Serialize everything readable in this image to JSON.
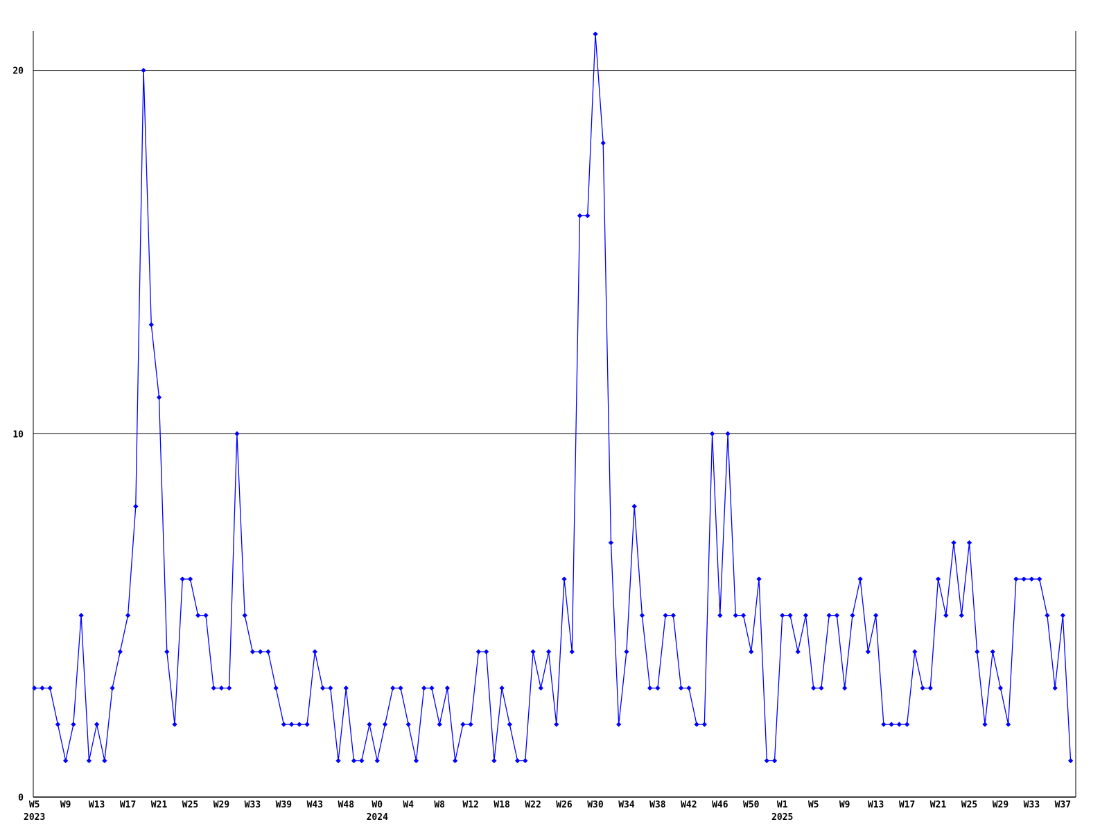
{
  "chart_data": {
    "type": "line",
    "title": "",
    "xlabel": "",
    "ylabel": "",
    "legend": "none",
    "grid": "horizontal-only",
    "line_color": "#0000ff",
    "axis_color": "#000000",
    "background_color": "#ffffff",
    "marker": "diamond",
    "y_ticks": [
      0,
      10,
      20
    ],
    "ylim": [
      0,
      21.5
    ],
    "tick_every": 4,
    "x_tick_labels": [
      "W5",
      "W9",
      "W13",
      "W17",
      "W21",
      "W25",
      "W29",
      "W33",
      "W39",
      "W43",
      "W48",
      "W0",
      "W4",
      "W8",
      "W12",
      "W18",
      "W22",
      "W26",
      "W30",
      "W34",
      "W38",
      "W42",
      "W46",
      "W50",
      "W1",
      "W5",
      "W9",
      "W13",
      "W17",
      "W21",
      "W25",
      "W29",
      "W33",
      "W37"
    ],
    "year_labels": [
      {
        "tick_index": 0,
        "text": "2023"
      },
      {
        "tick_index": 11,
        "text": "2024"
      },
      {
        "tick_index": 24,
        "text": "2025"
      }
    ],
    "values": [
      3,
      3,
      3,
      2,
      1,
      2,
      5,
      1,
      2,
      1,
      3,
      4,
      5,
      8,
      20,
      13,
      11,
      4,
      2,
      6,
      6,
      5,
      5,
      3,
      3,
      3,
      10,
      5,
      4,
      4,
      4,
      3,
      2,
      2,
      2,
      2,
      4,
      3,
      3,
      1,
      3,
      1,
      1,
      2,
      1,
      2,
      3,
      3,
      2,
      1,
      3,
      3,
      2,
      3,
      1,
      2,
      2,
      4,
      4,
      1,
      3,
      2,
      1,
      1,
      4,
      3,
      4,
      2,
      6,
      4,
      16,
      16,
      21,
      18,
      7,
      2,
      4,
      8,
      5,
      3,
      3,
      5,
      5,
      3,
      3,
      2,
      2,
      10,
      5,
      10,
      5,
      5,
      4,
      6,
      1,
      1,
      5,
      5,
      4,
      5,
      3,
      3,
      5,
      5,
      3,
      5,
      6,
      4,
      5,
      2,
      2,
      2,
      2,
      4,
      3,
      3,
      6,
      5,
      7,
      5,
      7,
      4,
      2,
      4,
      3,
      2,
      6,
      6,
      6,
      6,
      5,
      3,
      5,
      1
    ]
  }
}
